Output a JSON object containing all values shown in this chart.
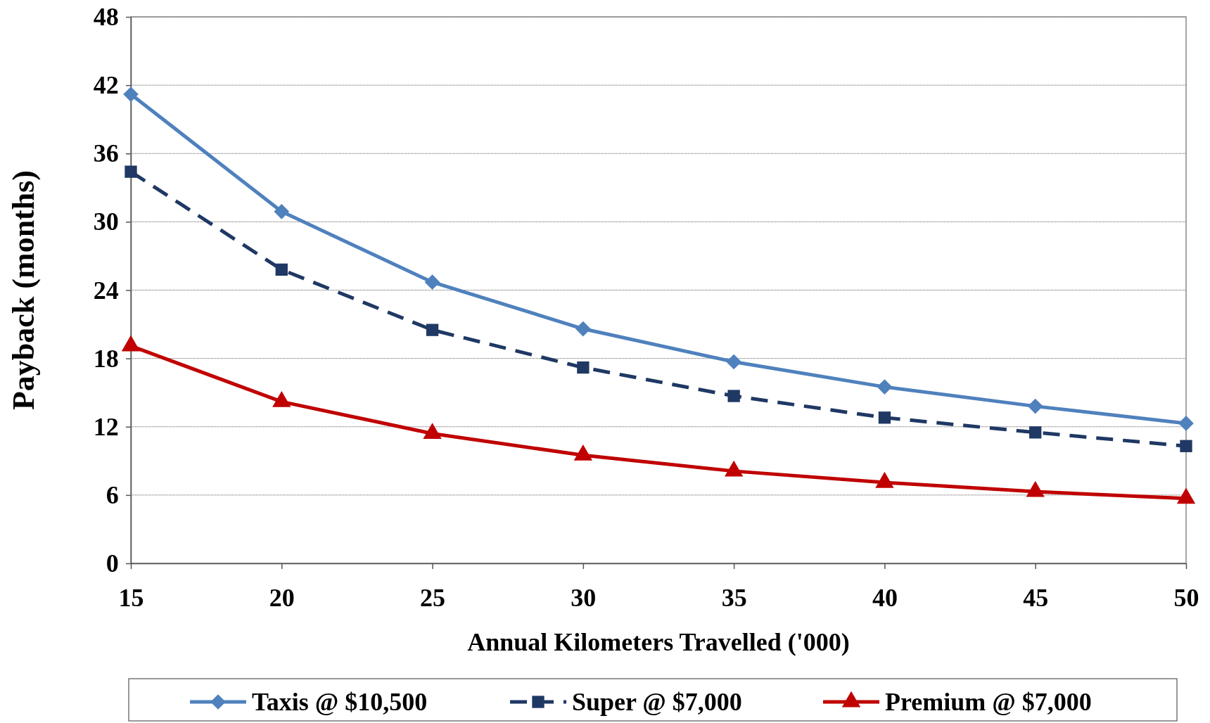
{
  "chart_data": {
    "type": "line",
    "xlabel": "Annual Kilometers Travelled ('000)",
    "ylabel": "Payback (months)",
    "x": [
      15,
      20,
      25,
      30,
      35,
      40,
      45,
      50
    ],
    "xlim": [
      15,
      50
    ],
    "xticks": [
      15,
      20,
      25,
      30,
      35,
      40,
      45,
      50
    ],
    "ylim": [
      0,
      48
    ],
    "yticks": [
      0,
      6,
      12,
      18,
      24,
      30,
      36,
      42,
      48
    ],
    "grid": "y",
    "legend": "bottom",
    "series": [
      {
        "name": "Taxis @ $10,500",
        "color": "#4f81bd",
        "marker": "diamond",
        "line_style": "solid",
        "values": [
          41.2,
          30.9,
          24.7,
          20.6,
          17.7,
          15.5,
          13.8,
          12.3
        ]
      },
      {
        "name": "Super @ $7,000",
        "color": "#1f3864",
        "marker": "square",
        "line_style": "dashed",
        "values": [
          34.4,
          25.8,
          20.5,
          17.2,
          14.7,
          12.8,
          11.5,
          10.3
        ]
      },
      {
        "name": "Premium @ $7,000",
        "color": "#c00000",
        "marker": "triangle",
        "line_style": "solid",
        "values": [
          19.1,
          14.2,
          11.4,
          9.5,
          8.1,
          7.1,
          6.3,
          5.7
        ]
      }
    ]
  }
}
